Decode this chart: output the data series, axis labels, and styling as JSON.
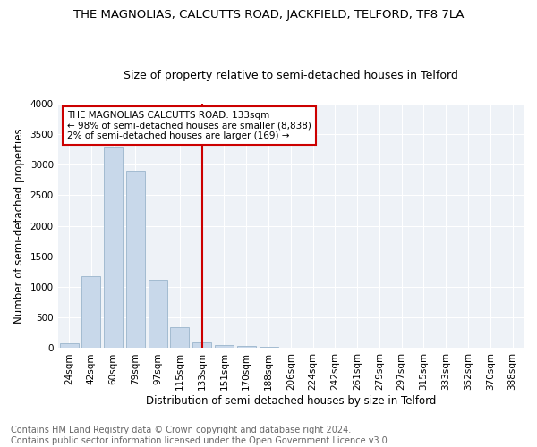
{
  "title": "THE MAGNOLIAS, CALCUTTS ROAD, JACKFIELD, TELFORD, TF8 7LA",
  "subtitle": "Size of property relative to semi-detached houses in Telford",
  "xlabel": "Distribution of semi-detached houses by size in Telford",
  "ylabel": "Number of semi-detached properties",
  "footer_line1": "Contains HM Land Registry data © Crown copyright and database right 2024.",
  "footer_line2": "Contains public sector information licensed under the Open Government Licence v3.0.",
  "annotation_line1": "THE MAGNOLIAS CALCUTTS ROAD: 133sqm",
  "annotation_line2": "← 98% of semi-detached houses are smaller (8,838)",
  "annotation_line3": "2% of semi-detached houses are larger (169) →",
  "categories": [
    "24sqm",
    "42sqm",
    "60sqm",
    "79sqm",
    "97sqm",
    "115sqm",
    "133sqm",
    "151sqm",
    "170sqm",
    "188sqm",
    "206sqm",
    "224sqm",
    "242sqm",
    "261sqm",
    "279sqm",
    "297sqm",
    "315sqm",
    "333sqm",
    "352sqm",
    "370sqm",
    "388sqm"
  ],
  "values": [
    75,
    1175,
    3300,
    2900,
    1120,
    340,
    95,
    55,
    35,
    25,
    0,
    0,
    0,
    0,
    0,
    0,
    0,
    0,
    0,
    0,
    0
  ],
  "bar_color": "#c8d8ea",
  "bar_edge_color": "#9ab5cc",
  "marker_color": "#cc0000",
  "annotation_box_edge_color": "#cc0000",
  "background_color": "#eef2f7",
  "ylim": [
    0,
    4000
  ],
  "yticks": [
    0,
    500,
    1000,
    1500,
    2000,
    2500,
    3000,
    3500,
    4000
  ],
  "title_fontsize": 9.5,
  "subtitle_fontsize": 9,
  "axis_label_fontsize": 8.5,
  "tick_fontsize": 7.5,
  "annotation_fontsize": 7.5,
  "footer_fontsize": 7
}
